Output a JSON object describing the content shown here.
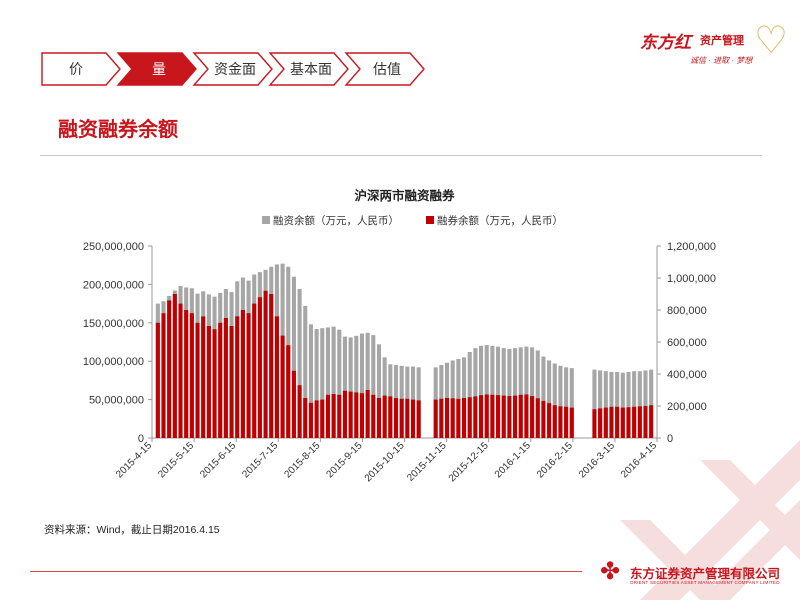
{
  "nav": {
    "tabs": [
      {
        "label": "价",
        "active": false
      },
      {
        "label": "量",
        "active": true
      },
      {
        "label": "资金面",
        "active": false
      },
      {
        "label": "基本面",
        "active": false
      },
      {
        "label": "估值",
        "active": false
      }
    ],
    "colors": {
      "active_fill": "#c8161d",
      "border": "#c8161d",
      "inactive_text": "#333333",
      "active_text": "#ffffff"
    }
  },
  "logo": {
    "brand": "东方红",
    "brand_sub": "资产管理",
    "slogan": "诚信 · 进取 · 梦想"
  },
  "page_title": "融资融券余额",
  "chart_data": {
    "type": "bar",
    "title": "沪深两市融资融券",
    "legend_position": "top",
    "series": [
      {
        "name": "融资余额（万元，人民币）",
        "axis": "left",
        "color": "#a6a6a6",
        "values": [
          175000000,
          178000000,
          185000000,
          192000000,
          198000000,
          196000000,
          195000000,
          188000000,
          191000000,
          187000000,
          184000000,
          189000000,
          194000000,
          190000000,
          204000000,
          209000000,
          205000000,
          213000000,
          216000000,
          219000000,
          223000000,
          226000000,
          227000000,
          223000000,
          210000000,
          194000000,
          172000000,
          148000000,
          142000000,
          143000000,
          144000000,
          145000000,
          141000000,
          132000000,
          131000000,
          133000000,
          136000000,
          137000000,
          134000000,
          122000000,
          105000000,
          96000000,
          95000000,
          94000000,
          93000000,
          93000000,
          92000000,
          0,
          0,
          92000000,
          95000000,
          98000000,
          101000000,
          103000000,
          105000000,
          112000000,
          117000000,
          120000000,
          121000000,
          120000000,
          119000000,
          117000000,
          116000000,
          117000000,
          118000000,
          119000000,
          118000000,
          114000000,
          106000000,
          101000000,
          97000000,
          94000000,
          92000000,
          91000000,
          0,
          0,
          0,
          89000000,
          88000000,
          87000000,
          86000000,
          86000000,
          85000000,
          86000000,
          87000000,
          87000000,
          88000000,
          89000000
        ]
      },
      {
        "name": "融券余额（万元，人民币）",
        "axis": "right",
        "color": "#c00000",
        "values": [
          720000,
          780000,
          860000,
          900000,
          840000,
          800000,
          780000,
          720000,
          760000,
          700000,
          680000,
          720000,
          750000,
          700000,
          760000,
          800000,
          780000,
          840000,
          880000,
          920000,
          900000,
          760000,
          640000,
          580000,
          420000,
          330000,
          250000,
          220000,
          235000,
          240000,
          270000,
          275000,
          270000,
          295000,
          290000,
          285000,
          280000,
          300000,
          270000,
          250000,
          265000,
          260000,
          250000,
          245000,
          245000,
          240000,
          235000,
          0,
          0,
          240000,
          245000,
          250000,
          248000,
          245000,
          250000,
          255000,
          260000,
          268000,
          272000,
          270000,
          268000,
          265000,
          262000,
          265000,
          270000,
          272000,
          262000,
          248000,
          232000,
          218000,
          205000,
          198000,
          195000,
          190000,
          0,
          0,
          0,
          180000,
          185000,
          190000,
          195000,
          195000,
          190000,
          192000,
          195000,
          198000,
          200000,
          205000
        ]
      }
    ],
    "x_labels": [
      "2015-4-15",
      "2015-5-15",
      "2015-6-15",
      "2015-7-15",
      "2015-8-15",
      "2015-9-15",
      "2015-10-15",
      "2015-11-15",
      "2015-12-15",
      "2016-1-15",
      "2016-2-15",
      "2016-3-15",
      "2016-4-15"
    ],
    "y_left": {
      "min": 0,
      "max": 250000000,
      "ticks": [
        "250,000,000",
        "200,000,000",
        "150,000,000",
        "100,000,000",
        "50,000,000",
        "0"
      ]
    },
    "y_right": {
      "min": 0,
      "max": 1200000,
      "ticks": [
        "1,200,000",
        "1,000,000",
        "800,000",
        "600,000",
        "400,000",
        "200,000",
        "0"
      ]
    },
    "grid": false
  },
  "source_note": "资料来源：Wind，截止日期2016.4.15",
  "footer": {
    "company_cn": "东方证券资产管理有限公司",
    "company_en": "ORIENT SECURITIES ASSET MANAGEMENT COMPANY LIMITED"
  }
}
